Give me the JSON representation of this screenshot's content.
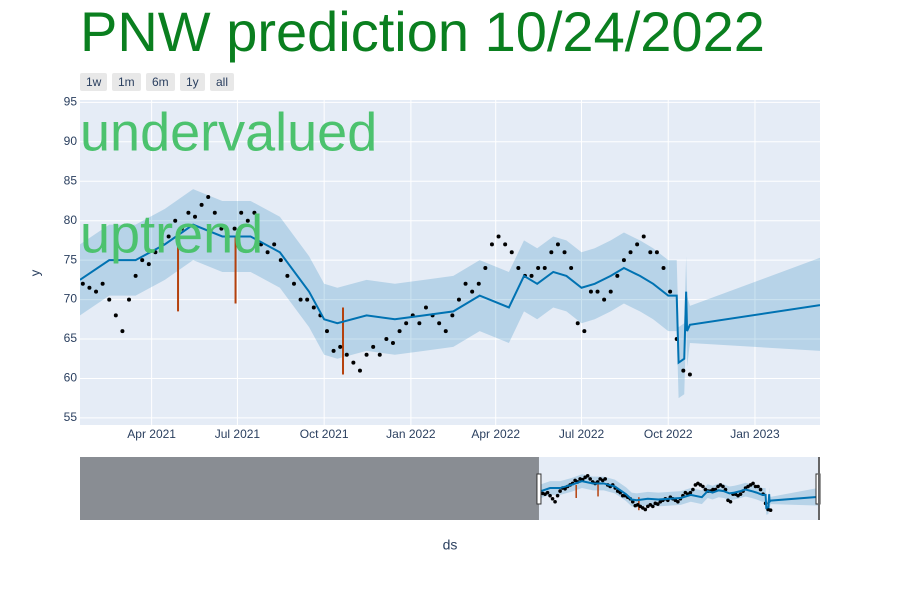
{
  "chart_data": {
    "type": "line",
    "title": "PNW prediction 10/24/2022",
    "title_color": "#0a7f1f",
    "annotations": [
      {
        "text": "undervalued",
        "color": "#4cc26e"
      },
      {
        "text": "uptrend",
        "color": "#4cc26e"
      }
    ],
    "buttons": [
      "1w",
      "1m",
      "6m",
      "1y",
      "all"
    ],
    "x_label": "ds",
    "y_label": "y",
    "xlim": [
      "2021-01-15",
      "2023-03-11"
    ],
    "ylim": [
      54.1,
      95.3
    ],
    "yticks": [
      55,
      60,
      65,
      70,
      75,
      80,
      85,
      90,
      95
    ],
    "xticks": [
      {
        "value": "2021-04-01",
        "label": "Apr 2021"
      },
      {
        "value": "2021-07-01",
        "label": "Jul 2021"
      },
      {
        "value": "2021-10-01",
        "label": "Oct 2021"
      },
      {
        "value": "2022-01-01",
        "label": "Jan 2022"
      },
      {
        "value": "2022-04-01",
        "label": "Apr 2022"
      },
      {
        "value": "2022-07-01",
        "label": "Jul 2022"
      },
      {
        "value": "2022-10-01",
        "label": "Oct 2022"
      },
      {
        "value": "2023-01-01",
        "label": "Jan 2023"
      }
    ],
    "grid": true,
    "slider_xlim": [
      "2017-07-13",
      "2023-03-11"
    ],
    "actual": {
      "color": "#000000",
      "x": [
        "2021-01-18",
        "2021-01-25",
        "2021-02-01",
        "2021-02-08",
        "2021-02-15",
        "2021-02-22",
        "2021-03-01",
        "2021-03-08",
        "2021-03-15",
        "2021-03-22",
        "2021-03-29",
        "2021-04-05",
        "2021-04-12",
        "2021-04-19",
        "2021-04-26",
        "2021-05-03",
        "2021-05-10",
        "2021-05-17",
        "2021-05-24",
        "2021-05-31",
        "2021-06-07",
        "2021-06-14",
        "2021-06-21",
        "2021-06-28",
        "2021-07-05",
        "2021-07-12",
        "2021-07-19",
        "2021-07-26",
        "2021-08-02",
        "2021-08-09",
        "2021-08-16",
        "2021-08-23",
        "2021-08-30",
        "2021-09-06",
        "2021-09-13",
        "2021-09-20",
        "2021-09-27",
        "2021-10-04",
        "2021-10-11",
        "2021-10-18",
        "2021-10-25",
        "2021-11-01",
        "2021-11-08",
        "2021-11-15",
        "2021-11-22",
        "2021-11-29",
        "2021-12-06",
        "2021-12-13",
        "2021-12-20",
        "2021-12-27",
        "2022-01-03",
        "2022-01-10",
        "2022-01-17",
        "2022-01-24",
        "2022-01-31",
        "2022-02-07",
        "2022-02-14",
        "2022-02-21",
        "2022-02-28",
        "2022-03-07",
        "2022-03-14",
        "2022-03-21",
        "2022-03-28",
        "2022-04-04",
        "2022-04-11",
        "2022-04-18",
        "2022-04-25",
        "2022-05-02",
        "2022-05-09",
        "2022-05-16",
        "2022-05-23",
        "2022-05-30",
        "2022-06-06",
        "2022-06-13",
        "2022-06-20",
        "2022-06-27",
        "2022-07-04",
        "2022-07-11",
        "2022-07-18",
        "2022-07-25",
        "2022-08-01",
        "2022-08-08",
        "2022-08-15",
        "2022-08-22",
        "2022-08-29",
        "2022-09-05",
        "2022-09-12",
        "2022-09-19",
        "2022-09-26",
        "2022-10-03",
        "2022-10-10",
        "2022-10-17",
        "2022-10-24"
      ],
      "values": [
        72,
        71.5,
        71,
        72,
        70,
        68,
        66,
        70,
        73,
        75,
        74.5,
        76,
        77,
        78,
        80,
        79,
        81,
        80.5,
        82,
        83,
        81,
        79,
        78,
        79,
        81,
        80,
        81,
        77,
        76,
        77,
        75,
        73,
        72,
        70,
        70,
        69,
        68,
        66,
        63.5,
        64,
        63,
        62,
        61,
        63,
        64,
        63,
        65,
        64.5,
        66,
        67,
        68,
        67,
        69,
        68,
        67,
        66,
        68,
        70,
        72,
        71,
        72,
        74,
        77,
        78,
        77,
        76,
        74,
        73,
        73,
        74,
        74,
        76,
        77,
        76,
        74,
        67,
        66,
        71,
        71,
        70,
        71,
        73,
        75,
        76,
        77,
        78,
        76,
        76,
        74,
        71,
        65,
        61,
        60.5
      ]
    },
    "forecast": {
      "color": "#0072b2",
      "band_color": "#0072b2",
      "x": [
        "2021-01-15",
        "2021-02-15",
        "2021-03-15",
        "2021-04-15",
        "2021-05-15",
        "2021-06-15",
        "2021-07-15",
        "2021-08-15",
        "2021-09-15",
        "2021-10-01",
        "2021-10-15",
        "2021-11-15",
        "2021-12-15",
        "2022-01-15",
        "2022-02-15",
        "2022-03-15",
        "2022-04-15",
        "2022-05-01",
        "2022-05-15",
        "2022-06-01",
        "2022-06-15",
        "2022-07-01",
        "2022-07-15",
        "2022-08-01",
        "2022-08-15",
        "2022-09-01",
        "2022-09-15",
        "2022-10-01",
        "2022-10-10",
        "2022-10-12",
        "2022-10-18",
        "2022-10-20",
        "2022-10-21",
        "2022-10-24",
        "2023-03-11"
      ],
      "values": [
        72.5,
        75,
        75,
        77,
        79.5,
        78,
        78,
        76,
        71,
        67.5,
        67,
        68,
        67.5,
        68,
        68.5,
        70.5,
        69,
        73,
        72,
        73.5,
        73,
        71.5,
        72,
        73,
        74,
        73,
        72,
        70.5,
        70.5,
        62,
        62.5,
        71,
        66,
        66.8,
        69.3
      ],
      "lower": [
        68,
        70.5,
        70.5,
        72.5,
        75,
        73.5,
        73.5,
        71.5,
        66.5,
        63,
        62.5,
        63.5,
        63,
        63.5,
        64,
        66,
        64.5,
        68.5,
        67.5,
        69,
        68.5,
        67,
        67.5,
        68.5,
        69.5,
        68.5,
        67.5,
        66,
        66,
        57.5,
        58,
        66.5,
        61.5,
        64.5,
        63.5
      ],
      "upper": [
        77,
        79.5,
        79.5,
        81.5,
        84,
        82.5,
        82.5,
        80.5,
        75.5,
        72,
        71.5,
        72.5,
        72,
        72.5,
        73,
        75,
        73.5,
        77.5,
        76.5,
        78,
        77.5,
        76,
        76.5,
        77.5,
        78.5,
        77.5,
        76.5,
        75,
        75,
        66.5,
        67,
        75.5,
        70.5,
        69.2,
        75.3
      ]
    },
    "changepoints": {
      "color": "#b5410d",
      "x": [
        "2021-04-29",
        "2021-06-29",
        "2021-10-21"
      ],
      "low": [
        68.5,
        69.5,
        60.5
      ],
      "high": [
        77,
        78,
        69
      ]
    }
  }
}
